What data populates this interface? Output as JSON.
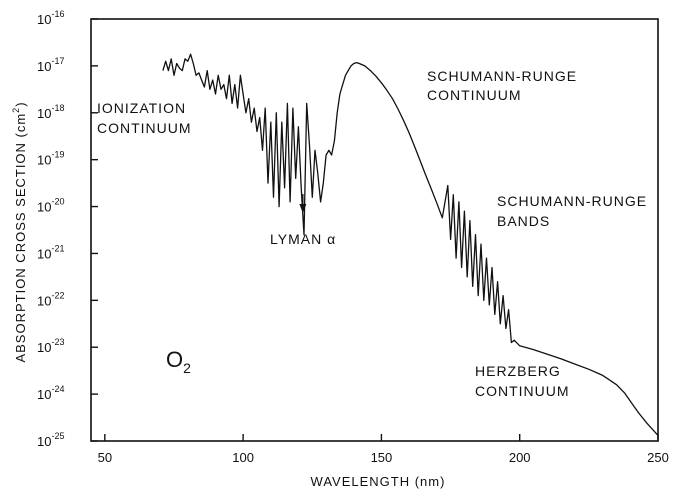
{
  "chart_data": {
    "type": "line",
    "title": "",
    "xlabel": "WAVELENGTH (nm)",
    "ylabel": "ABSORPTION CROSS SECTION (cm²)",
    "ylabel_main": "ABSORPTION CROSS SECTION (cm",
    "ylabel_sup": "2",
    "ylabel_end": ")",
    "xlim": [
      45,
      250
    ],
    "ylim_log10": [
      -25,
      -16
    ],
    "x_ticks": [
      50,
      100,
      150,
      200,
      250
    ],
    "x_tick_labels": [
      "50",
      "100",
      "150",
      "200",
      "250"
    ],
    "y_ticks": [
      -25,
      -24,
      -23,
      -22,
      -21,
      -20,
      -19,
      -18,
      -17,
      -16
    ],
    "y_tick_base": "10",
    "y_tick_exponents": [
      "-25",
      "-24",
      "-23",
      "-22",
      "-21",
      "-20",
      "-19",
      "-18",
      "-17",
      "-16"
    ],
    "grid": false,
    "series": [
      {
        "name": "O2",
        "x": [
          71,
          72,
          73,
          74,
          75,
          76,
          77,
          78,
          79,
          80,
          81,
          82,
          83,
          84,
          85,
          86,
          87,
          88,
          89,
          90,
          91,
          92,
          93,
          94,
          95,
          96,
          97,
          98,
          99,
          100,
          101,
          102,
          103,
          104,
          105,
          106,
          107,
          108,
          109,
          110,
          111,
          112,
          113,
          114,
          115,
          116,
          117,
          118,
          119,
          120,
          121,
          122,
          123,
          124,
          125,
          126,
          127,
          128,
          129,
          130,
          131,
          132,
          133,
          134,
          135,
          136,
          137,
          138,
          139,
          140,
          141,
          142,
          144,
          146,
          148,
          150,
          152,
          154,
          156,
          158,
          160,
          162,
          164,
          166,
          168,
          170,
          172,
          174,
          175,
          176,
          177,
          178,
          179,
          180,
          181,
          182,
          183,
          184,
          185,
          186,
          187,
          188,
          189,
          190,
          191,
          192,
          193,
          194,
          195,
          196,
          197,
          198,
          200,
          205,
          210,
          215,
          220,
          225,
          230,
          232,
          235,
          238,
          240,
          243,
          246,
          250
        ],
        "log10_values": [
          -17.1,
          -16.9,
          -17.1,
          -16.85,
          -17.2,
          -16.95,
          -17.05,
          -17.1,
          -16.85,
          -16.9,
          -16.75,
          -16.95,
          -17.2,
          -17.15,
          -17.3,
          -17.45,
          -17.1,
          -17.5,
          -17.3,
          -17.6,
          -17.2,
          -17.5,
          -17.4,
          -17.7,
          -17.2,
          -17.8,
          -17.4,
          -17.9,
          -17.2,
          -17.6,
          -18.0,
          -17.7,
          -18.2,
          -17.9,
          -18.4,
          -18.1,
          -18.8,
          -17.9,
          -19.5,
          -18.2,
          -19.8,
          -18.0,
          -20.0,
          -18.2,
          -19.6,
          -17.8,
          -19.9,
          -17.9,
          -19.4,
          -18.3,
          -19.6,
          -20.6,
          -17.8,
          -18.7,
          -19.8,
          -18.8,
          -19.3,
          -19.9,
          -19.5,
          -18.9,
          -18.8,
          -18.9,
          -18.6,
          -18.0,
          -17.6,
          -17.4,
          -17.2,
          -17.1,
          -17.0,
          -16.95,
          -16.93,
          -16.95,
          -17.0,
          -17.1,
          -17.22,
          -17.36,
          -17.52,
          -17.7,
          -17.92,
          -18.16,
          -18.43,
          -18.72,
          -19.02,
          -19.33,
          -19.62,
          -19.92,
          -20.24,
          -19.55,
          -20.7,
          -19.75,
          -21.1,
          -19.9,
          -21.3,
          -20.1,
          -21.5,
          -20.3,
          -21.7,
          -20.6,
          -21.9,
          -20.8,
          -22.0,
          -21.1,
          -22.1,
          -21.3,
          -22.3,
          -21.6,
          -22.5,
          -21.9,
          -22.6,
          -22.2,
          -22.9,
          -22.85,
          -22.97,
          -23.05,
          -23.15,
          -23.25,
          -23.36,
          -23.47,
          -23.6,
          -23.68,
          -23.8,
          -23.98,
          -24.15,
          -24.4,
          -24.62,
          -24.88
        ]
      }
    ],
    "annotations": [
      {
        "id": "ionization",
        "lines": [
          "IONIZATION",
          "CONTINUUM"
        ]
      },
      {
        "id": "sr-continuum",
        "lines": [
          "SCHUMANN-RUNGE",
          "CONTINUUM"
        ]
      },
      {
        "id": "sr-bands",
        "lines": [
          "SCHUMANN-RUNGE",
          "BANDS"
        ]
      },
      {
        "id": "herzberg",
        "lines": [
          "HERZBERG",
          "CONTINUUM"
        ]
      },
      {
        "id": "lyman",
        "lines": [
          "LYMAN α"
        ],
        "x": 121.6
      }
    ],
    "species_label": {
      "main": "O",
      "sub": "2"
    }
  }
}
